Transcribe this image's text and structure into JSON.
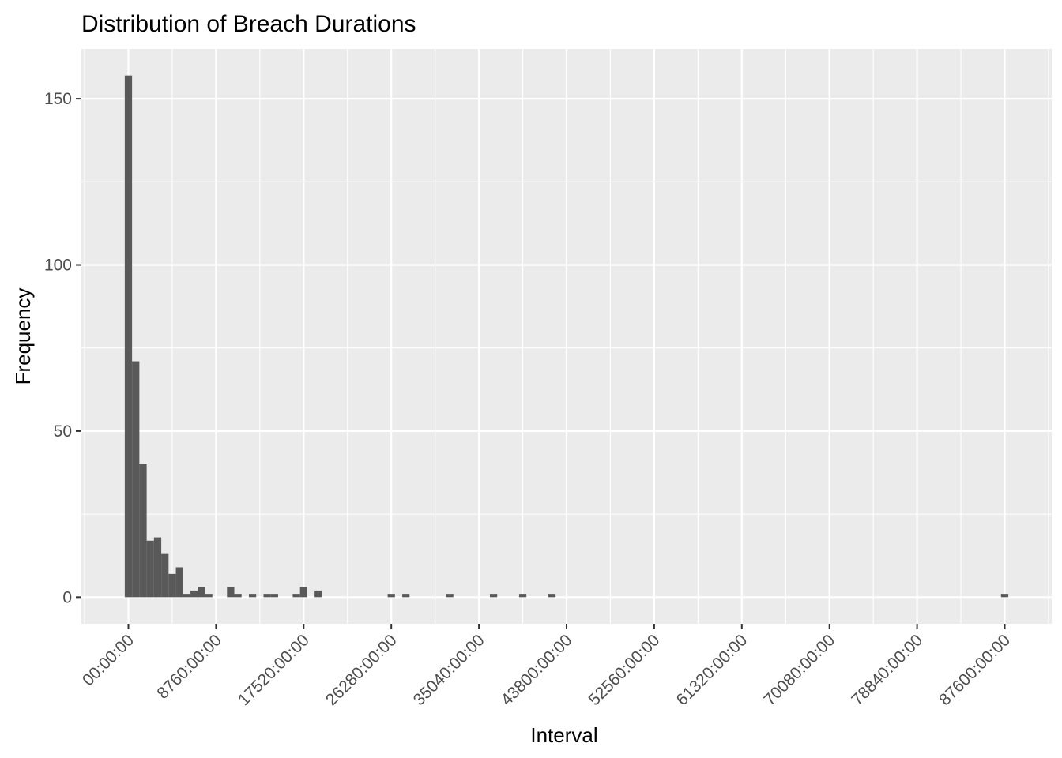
{
  "chart_data": {
    "type": "bar",
    "title": "Distribution of Breach Durations",
    "xlabel": "Interval",
    "ylabel": "Frequency",
    "x_unit": "hours",
    "x_tick_values": [
      0,
      8760,
      17520,
      26280,
      35040,
      43800,
      52560,
      61320,
      70080,
      78840,
      87600
    ],
    "x_tick_labels": [
      "00:00:00",
      "8760:00:00",
      "17520:00:00",
      "26280:00:00",
      "35040:00:00",
      "43800:00:00",
      "52560:00:00",
      "61320:00:00",
      "70080:00:00",
      "78840:00:00",
      "87600:00:00"
    ],
    "y_tick_values": [
      0,
      50,
      100,
      150
    ],
    "y_tick_labels": [
      "0",
      "50",
      "100",
      "150"
    ],
    "xlim": [
      -4700,
      92300
    ],
    "ylim": [
      -8,
      165
    ],
    "grid": true,
    "background": "#ebebeb",
    "bar_color": "#595959",
    "bin_width_hours": 730,
    "bin_start_hours": [
      -365,
      365,
      1095,
      1825,
      2555,
      3285,
      4015,
      4745,
      5475,
      6205,
      6935,
      7665,
      9855,
      10585,
      12045,
      13505,
      14235,
      16425,
      17155,
      18615,
      25915,
      27375,
      31755,
      36135,
      39055,
      41975,
      87230
    ],
    "values": [
      157,
      71,
      40,
      17,
      18,
      13,
      7,
      9,
      1,
      2,
      3,
      1,
      3,
      1,
      1,
      1,
      1,
      1,
      3,
      2,
      1,
      1,
      1,
      1,
      1,
      1,
      1
    ]
  }
}
